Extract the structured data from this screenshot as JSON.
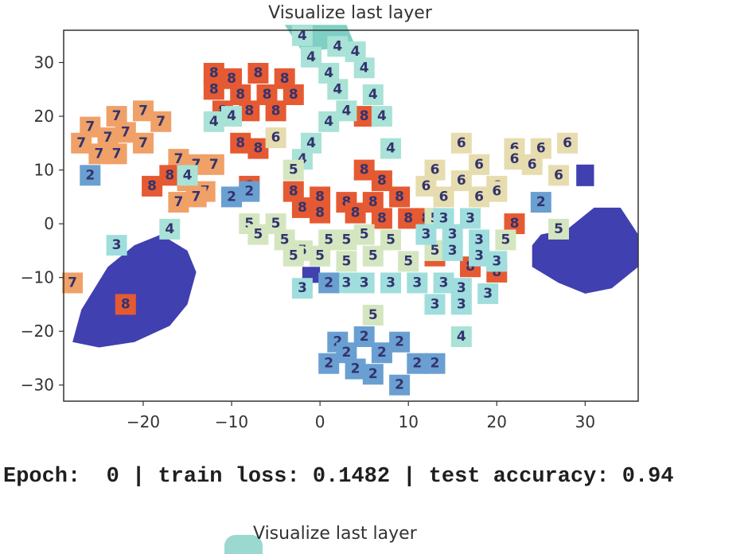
{
  "colors": {
    "0": "#7fcfc4",
    "1": "#4040b0",
    "2": "#6a9fd2",
    "3": "#9fdedd",
    "4": "#a9e2d6",
    "5": "#d4e6c0",
    "6": "#e6dcae",
    "7": "#f0a168",
    "8": "#e55a32",
    "9": "#d94a2e",
    "label_dark": "#33336e"
  },
  "console": {
    "epoch_label": "Epoch:",
    "epoch_value": "0",
    "train_loss_label": "train loss:",
    "train_loss_value": "0.1482",
    "test_accuracy_label": "test accuracy:",
    "test_accuracy_value": "0.94"
  },
  "second_plot": {
    "title": "Visualize last layer"
  },
  "chart_data": {
    "type": "scatter",
    "title": "Visualize last layer",
    "xlabel": "",
    "ylabel": "",
    "xlim": [
      -29,
      36
    ],
    "ylim": [
      -33,
      36
    ],
    "xticks": [
      -20,
      -10,
      0,
      10,
      20,
      30
    ],
    "yticks": [
      -30,
      -20,
      -10,
      0,
      10,
      20,
      30
    ],
    "xtick_labels": [
      "−20",
      "−10",
      "0",
      "10",
      "20",
      "30"
    ],
    "ytick_labels": [
      "−30",
      "−20",
      "−10",
      "0",
      "10",
      "20",
      "30"
    ],
    "grid": false,
    "points": [
      {
        "x": -23,
        "y": 20,
        "label": "7"
      },
      {
        "x": -20,
        "y": 21,
        "label": "7"
      },
      {
        "x": -18,
        "y": 19,
        "label": "7"
      },
      {
        "x": -26,
        "y": 18,
        "label": "7"
      },
      {
        "x": -24,
        "y": 16,
        "label": "7"
      },
      {
        "x": -22,
        "y": 17,
        "label": "7"
      },
      {
        "x": -27,
        "y": 15,
        "label": "7"
      },
      {
        "x": -25,
        "y": 13,
        "label": "7"
      },
      {
        "x": -23,
        "y": 13,
        "label": "7"
      },
      {
        "x": -20,
        "y": 15,
        "label": "7"
      },
      {
        "x": -16,
        "y": 12,
        "label": "7"
      },
      {
        "x": -14,
        "y": 11,
        "label": "7"
      },
      {
        "x": -12,
        "y": 11,
        "label": "7"
      },
      {
        "x": -15,
        "y": 8,
        "label": "7"
      },
      {
        "x": -13,
        "y": 6,
        "label": "7"
      },
      {
        "x": -16,
        "y": 4,
        "label": "7"
      },
      {
        "x": -14,
        "y": 5,
        "label": "7"
      },
      {
        "x": -17,
        "y": 9,
        "label": "8"
      },
      {
        "x": -19,
        "y": 7,
        "label": "8"
      },
      {
        "x": -28,
        "y": -11,
        "label": "7"
      },
      {
        "x": -10,
        "y": 27,
        "label": "8"
      },
      {
        "x": -7,
        "y": 28,
        "label": "8"
      },
      {
        "x": -4,
        "y": 27,
        "label": "8"
      },
      {
        "x": -12,
        "y": 25,
        "label": "8"
      },
      {
        "x": -9,
        "y": 24,
        "label": "8"
      },
      {
        "x": -6,
        "y": 24,
        "label": "8"
      },
      {
        "x": -3,
        "y": 24,
        "label": "8"
      },
      {
        "x": -11,
        "y": 21,
        "label": "8"
      },
      {
        "x": -8,
        "y": 21,
        "label": "8"
      },
      {
        "x": -5,
        "y": 21,
        "label": "8"
      },
      {
        "x": -9,
        "y": 15,
        "label": "8"
      },
      {
        "x": -7,
        "y": 14,
        "label": "8"
      },
      {
        "x": -12,
        "y": 28,
        "label": "8"
      },
      {
        "x": 5,
        "y": 10,
        "label": "8"
      },
      {
        "x": 7,
        "y": 8,
        "label": "8"
      },
      {
        "x": -3,
        "y": 6,
        "label": "8"
      },
      {
        "x": 0,
        "y": 5,
        "label": "8"
      },
      {
        "x": 3,
        "y": 4,
        "label": "8"
      },
      {
        "x": 6,
        "y": 4,
        "label": "8"
      },
      {
        "x": 9,
        "y": 5,
        "label": "8"
      },
      {
        "x": -2,
        "y": 3,
        "label": "8"
      },
      {
        "x": 0,
        "y": 2,
        "label": "8"
      },
      {
        "x": 4,
        "y": 2,
        "label": "8"
      },
      {
        "x": 7,
        "y": 1,
        "label": "8"
      },
      {
        "x": 10,
        "y": 1,
        "label": "8"
      },
      {
        "x": 5,
        "y": 20,
        "label": "8"
      },
      {
        "x": 12,
        "y": 1,
        "label": "8"
      },
      {
        "x": 13,
        "y": -6,
        "label": "8"
      },
      {
        "x": 17,
        "y": -8,
        "label": "8"
      },
      {
        "x": 20,
        "y": -9,
        "label": "8"
      },
      {
        "x": 22,
        "y": 0,
        "label": "8"
      },
      {
        "x": -22,
        "y": -15,
        "label": "8"
      },
      {
        "x": -8,
        "y": 7,
        "label": "8"
      },
      {
        "x": -2,
        "y": 35,
        "label": "4"
      },
      {
        "x": 2,
        "y": 33,
        "label": "4"
      },
      {
        "x": -1,
        "y": 31,
        "label": "4"
      },
      {
        "x": 4,
        "y": 32,
        "label": "4"
      },
      {
        "x": 5,
        "y": 29,
        "label": "4"
      },
      {
        "x": 1,
        "y": 28,
        "label": "4"
      },
      {
        "x": 2,
        "y": 25,
        "label": "4"
      },
      {
        "x": 6,
        "y": 24,
        "label": "4"
      },
      {
        "x": 3,
        "y": 21,
        "label": "4"
      },
      {
        "x": 1,
        "y": 19,
        "label": "4"
      },
      {
        "x": -10,
        "y": 20,
        "label": "4"
      },
      {
        "x": -12,
        "y": 19,
        "label": "4"
      },
      {
        "x": -1,
        "y": 15,
        "label": "4"
      },
      {
        "x": -2,
        "y": 12,
        "label": "4"
      },
      {
        "x": 8,
        "y": 14,
        "label": "4"
      },
      {
        "x": -17,
        "y": -1,
        "label": "4"
      },
      {
        "x": 16,
        "y": -21,
        "label": "4"
      },
      {
        "x": 7,
        "y": 20,
        "label": "4"
      },
      {
        "x": -15,
        "y": 9,
        "label": "4"
      },
      {
        "x": 16,
        "y": 15,
        "label": "6"
      },
      {
        "x": 22,
        "y": 14,
        "label": "6"
      },
      {
        "x": 25,
        "y": 14,
        "label": "6"
      },
      {
        "x": 28,
        "y": 15,
        "label": "6"
      },
      {
        "x": 22,
        "y": 12,
        "label": "6"
      },
      {
        "x": 18,
        "y": 11,
        "label": "6"
      },
      {
        "x": 24,
        "y": 11,
        "label": "6"
      },
      {
        "x": 13,
        "y": 10,
        "label": "6"
      },
      {
        "x": 16,
        "y": 8,
        "label": "6"
      },
      {
        "x": 20,
        "y": 7,
        "label": "6"
      },
      {
        "x": 12,
        "y": 7,
        "label": "6"
      },
      {
        "x": 14,
        "y": 5,
        "label": "6"
      },
      {
        "x": 18,
        "y": 5,
        "label": "6"
      },
      {
        "x": 20,
        "y": 6,
        "label": "6"
      },
      {
        "x": 27,
        "y": 9,
        "label": "6"
      },
      {
        "x": -5,
        "y": 16,
        "label": "6"
      },
      {
        "x": -3,
        "y": 10,
        "label": "5"
      },
      {
        "x": -8,
        "y": 0,
        "label": "5"
      },
      {
        "x": -5,
        "y": 0,
        "label": "5"
      },
      {
        "x": -7,
        "y": -2,
        "label": "5"
      },
      {
        "x": -4,
        "y": -3,
        "label": "5"
      },
      {
        "x": -2,
        "y": -5,
        "label": "5"
      },
      {
        "x": 1,
        "y": -3,
        "label": "5"
      },
      {
        "x": 3,
        "y": -3,
        "label": "5"
      },
      {
        "x": 5,
        "y": -2,
        "label": "5"
      },
      {
        "x": 8,
        "y": -3,
        "label": "5"
      },
      {
        "x": -3,
        "y": -6,
        "label": "5"
      },
      {
        "x": 0,
        "y": -6,
        "label": "5"
      },
      {
        "x": 3,
        "y": -7,
        "label": "5"
      },
      {
        "x": 6,
        "y": -6,
        "label": "5"
      },
      {
        "x": 10,
        "y": -7,
        "label": "5"
      },
      {
        "x": 13,
        "y": 1,
        "label": "5"
      },
      {
        "x": 6,
        "y": -17,
        "label": "5"
      },
      {
        "x": 21,
        "y": -3,
        "label": "5"
      },
      {
        "x": 27,
        "y": -1,
        "label": "5"
      },
      {
        "x": 13,
        "y": -5,
        "label": "5"
      },
      {
        "x": -23,
        "y": -4,
        "label": "3"
      },
      {
        "x": 14,
        "y": 1,
        "label": "3"
      },
      {
        "x": 17,
        "y": 1,
        "label": "3"
      },
      {
        "x": 12,
        "y": -2,
        "label": "3"
      },
      {
        "x": 15,
        "y": -2,
        "label": "3"
      },
      {
        "x": 18,
        "y": -3,
        "label": "3"
      },
      {
        "x": 15,
        "y": -5,
        "label": "3"
      },
      {
        "x": 18,
        "y": -6,
        "label": "3"
      },
      {
        "x": 20,
        "y": -7,
        "label": "3"
      },
      {
        "x": -2,
        "y": -12,
        "label": "3"
      },
      {
        "x": 3,
        "y": -11,
        "label": "3"
      },
      {
        "x": 5,
        "y": -11,
        "label": "3"
      },
      {
        "x": 8,
        "y": -11,
        "label": "3"
      },
      {
        "x": 11,
        "y": -11,
        "label": "3"
      },
      {
        "x": 14,
        "y": -11,
        "label": "3"
      },
      {
        "x": 16,
        "y": -12,
        "label": "3"
      },
      {
        "x": 19,
        "y": -13,
        "label": "3"
      },
      {
        "x": 13,
        "y": -15,
        "label": "3"
      },
      {
        "x": 16,
        "y": -15,
        "label": "3"
      },
      {
        "x": -8,
        "y": 6,
        "label": "2"
      },
      {
        "x": -10,
        "y": 5,
        "label": "2"
      },
      {
        "x": 1,
        "y": -11,
        "label": "2"
      },
      {
        "x": 2,
        "y": -22,
        "label": "2"
      },
      {
        "x": 5,
        "y": -21,
        "label": "2"
      },
      {
        "x": 9,
        "y": -22,
        "label": "2"
      },
      {
        "x": 3,
        "y": -24,
        "label": "2"
      },
      {
        "x": 7,
        "y": -24,
        "label": "2"
      },
      {
        "x": 1,
        "y": -26,
        "label": "2"
      },
      {
        "x": 4,
        "y": -27,
        "label": "2"
      },
      {
        "x": 11,
        "y": -26,
        "label": "2"
      },
      {
        "x": 13,
        "y": -26,
        "label": "2"
      },
      {
        "x": 6,
        "y": -28,
        "label": "2"
      },
      {
        "x": 9,
        "y": -30,
        "label": "2"
      },
      {
        "x": 25,
        "y": 4,
        "label": "2"
      },
      {
        "x": -26,
        "y": 9,
        "label": "2"
      }
    ],
    "blobs": [
      {
        "label": "1",
        "points": [
          [
            -28,
            -22
          ],
          [
            -27,
            -16
          ],
          [
            -24,
            -8
          ],
          [
            -21,
            -4
          ],
          [
            -18,
            -2
          ],
          [
            -15,
            -5
          ],
          [
            -14,
            -9
          ],
          [
            -15,
            -15
          ],
          [
            -17,
            -19
          ],
          [
            -21,
            -22
          ],
          [
            -25,
            -23
          ]
        ]
      },
      {
        "label": "1",
        "points": [
          [
            24,
            -4
          ],
          [
            24,
            -8
          ],
          [
            27,
            -11
          ],
          [
            30,
            -13
          ],
          [
            33,
            -12
          ],
          [
            36,
            -8
          ],
          [
            36,
            -2
          ],
          [
            34,
            3
          ],
          [
            31,
            3
          ],
          [
            28,
            -1
          ],
          [
            25,
            -2
          ]
        ]
      },
      {
        "label": "1",
        "points": [
          [
            29,
            11
          ],
          [
            31,
            11
          ],
          [
            31,
            7
          ],
          [
            29,
            7
          ]
        ]
      },
      {
        "label": "1",
        "points": [
          [
            -2,
            -8
          ],
          [
            0,
            -8
          ],
          [
            0,
            -11
          ],
          [
            -2,
            -11
          ]
        ]
      },
      {
        "label": "0",
        "points": [
          [
            -4,
            37
          ],
          [
            3,
            37
          ],
          [
            4,
            33
          ],
          [
            -2,
            32
          ]
        ]
      }
    ]
  }
}
